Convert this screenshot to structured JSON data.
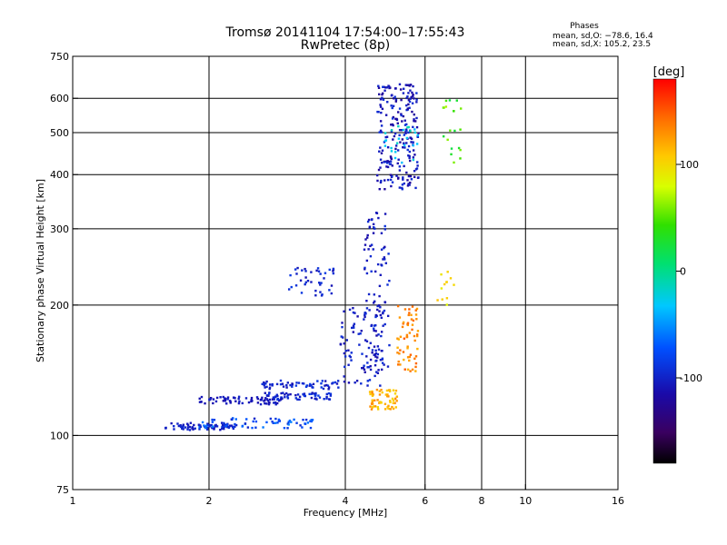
{
  "chart_data": {
    "type": "scatter",
    "title": "Tromsø 20141104 17:54:00–17:55:43",
    "subtitle": "RwPretec (8p)",
    "xlabel": "Frequency [MHz]",
    "ylabel": "Stationary phase Virtual Height [km]",
    "x_scale": "log",
    "y_scale": "log",
    "xlim": [
      1,
      16
    ],
    "ylim": [
      75,
      750
    ],
    "x_ticks": [
      1,
      2,
      4,
      6,
      8,
      10,
      16
    ],
    "y_ticks": [
      75,
      100,
      200,
      300,
      400,
      500,
      600,
      750
    ],
    "grid": true,
    "phases_box": {
      "title": "Phases",
      "line1": "mean, sd,O: −78.6, 16.4",
      "line2": "mean, sd,X: 105.2, 23.5"
    },
    "colorbar": {
      "label": "[deg]",
      "range": [
        -180,
        180
      ],
      "ticks": [
        100,
        0,
        -100
      ],
      "colormap": "rainbow"
    },
    "clusters": [
      {
        "f": [
          1.6,
          2.3
        ],
        "h": [
          103,
          107
        ],
        "phase": [
          -110,
          -95
        ],
        "n": 70
      },
      {
        "f": [
          1.9,
          3.4
        ],
        "h": [
          104,
          110
        ],
        "phase": [
          -100,
          -55
        ],
        "n": 70
      },
      {
        "f": [
          1.9,
          2.9
        ],
        "h": [
          118,
          123
        ],
        "phase": [
          -115,
          -100
        ],
        "n": 70
      },
      {
        "f": [
          2.6,
          3.8
        ],
        "h": [
          121,
          126
        ],
        "phase": [
          -110,
          -85
        ],
        "n": 60
      },
      {
        "f": [
          2.6,
          3.9
        ],
        "h": [
          128,
          134
        ],
        "phase": [
          -110,
          -85
        ],
        "n": 55
      },
      {
        "f": [
          3.9,
          4.9
        ],
        "h": [
          130,
          200
        ],
        "phase": [
          -115,
          -90
        ],
        "n": 90
      },
      {
        "f": [
          4.4,
          5.0
        ],
        "h": [
          140,
          330
        ],
        "phase": [
          -115,
          -90
        ],
        "n": 90
      },
      {
        "f": [
          4.5,
          5.2
        ],
        "h": [
          115,
          128
        ],
        "phase": [
          100,
          135
        ],
        "n": 60
      },
      {
        "f": [
          5.2,
          5.8
        ],
        "h": [
          140,
          200
        ],
        "phase": [
          115,
          150
        ],
        "n": 60
      },
      {
        "f": [
          4.7,
          5.8
        ],
        "h": [
          370,
          650
        ],
        "phase": [
          -125,
          -90
        ],
        "n": 220
      },
      {
        "f": [
          4.8,
          5.8
        ],
        "h": [
          420,
          520
        ],
        "phase": [
          -40,
          -10
        ],
        "n": 25
      },
      {
        "f": [
          3.0,
          3.8
        ],
        "h": [
          210,
          245
        ],
        "phase": [
          -110,
          -85
        ],
        "n": 40
      },
      {
        "f": [
          6.5,
          7.2
        ],
        "h": [
          420,
          600
        ],
        "phase": [
          20,
          70
        ],
        "n": 20
      },
      {
        "f": [
          6.2,
          7.0
        ],
        "h": [
          200,
          240
        ],
        "phase": [
          80,
          120
        ],
        "n": 12
      }
    ]
  }
}
